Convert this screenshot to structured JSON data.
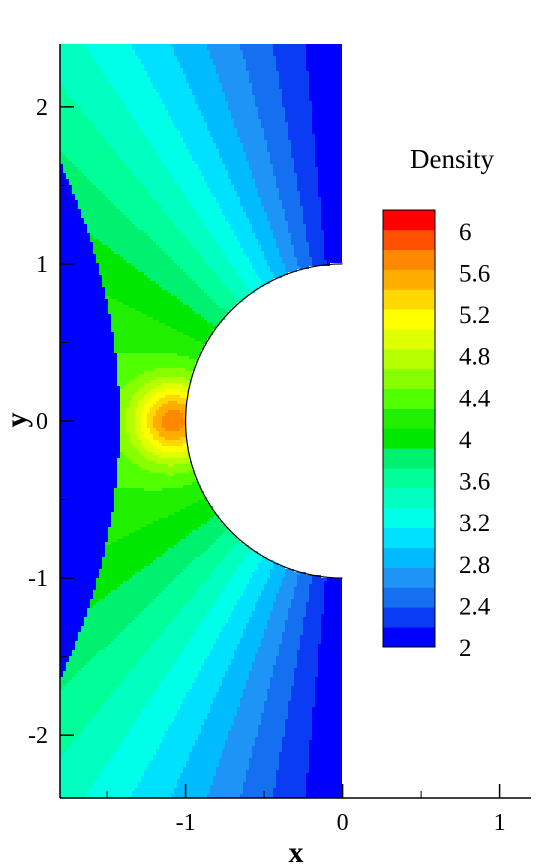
{
  "chart_data": {
    "type": "heatmap",
    "subtype": "filled-contour",
    "xlabel": "x",
    "ylabel": "y",
    "xlim": [
      -1.8,
      1.2
    ],
    "ylim": [
      -2.4,
      2.4
    ],
    "x_ticks": [
      -1,
      0,
      1
    ],
    "y_ticks": [
      -2,
      -1,
      0,
      1,
      2
    ],
    "grid": false,
    "body": {
      "shape": "half-cylinder",
      "radius": 1,
      "center": [
        0,
        0
      ]
    },
    "shock_standoff_x": -1.42,
    "field_min": 2,
    "field_max": 6.2,
    "stagnation_max": 6.0,
    "legend": {
      "title": "Density",
      "placement": "right",
      "labels": [
        "6",
        "5.6",
        "5.2",
        "4.8",
        "4.4",
        "4",
        "3.6",
        "3.2",
        "2.8",
        "2.4",
        "2"
      ],
      "levels": [
        2.0,
        2.2,
        2.4,
        2.6,
        2.8,
        3.0,
        3.2,
        3.4,
        3.6,
        3.8,
        4.0,
        4.2,
        4.4,
        4.6,
        4.8,
        5.0,
        5.2,
        5.4,
        5.6,
        5.8,
        6.0,
        6.2
      ],
      "colors": [
        "#0000ff",
        "#0a3cf4",
        "#1470f0",
        "#1e94f6",
        "#00bcff",
        "#00e0ff",
        "#00ffe8",
        "#00ffc0",
        "#00ff98",
        "#00f070",
        "#00e800",
        "#20f000",
        "#50ff00",
        "#88ff00",
        "#b4ff00",
        "#e0ff00",
        "#ffff00",
        "#ffd800",
        "#ffae00",
        "#ff8800",
        "#ff5000",
        "#ff0000"
      ]
    }
  }
}
